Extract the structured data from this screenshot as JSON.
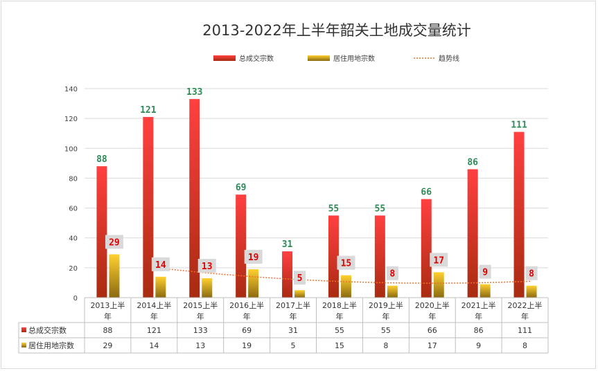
{
  "chart_data": {
    "type": "bar",
    "title": "2013-2022年上半年韶关土地成交量统计",
    "categories": [
      "2013上半年",
      "2014上半年",
      "2015上半年",
      "2016上半年",
      "2017上半年",
      "2018上半年",
      "2019上半年",
      "2020上半年",
      "2021上半年",
      "2022上半年"
    ],
    "category_lines": [
      [
        "2013上半",
        "年"
      ],
      [
        "2014上半",
        "年"
      ],
      [
        "2015上半",
        "年"
      ],
      [
        "2016上半",
        "年"
      ],
      [
        "2017上半",
        "年"
      ],
      [
        "2018上半",
        "年"
      ],
      [
        "2019上半",
        "年"
      ],
      [
        "2020上半",
        "年"
      ],
      [
        "2021上半",
        "年"
      ],
      [
        "2022上半",
        "年"
      ]
    ],
    "series": [
      {
        "name": "总成交宗数",
        "values": [
          88,
          121,
          133,
          69,
          31,
          55,
          55,
          66,
          86,
          111
        ],
        "color": "#e03030"
      },
      {
        "name": "居住用地宗数",
        "values": [
          29,
          14,
          13,
          19,
          5,
          15,
          8,
          17,
          9,
          8
        ],
        "color": "#e8b820"
      }
    ],
    "trendline": {
      "name": "趋势线",
      "color": "#f07030"
    },
    "ylim": [
      0,
      140
    ],
    "yticks": [
      0,
      20,
      40,
      60,
      80,
      100,
      120,
      140
    ],
    "legend_position": "top",
    "grid": true,
    "data_table": true
  }
}
